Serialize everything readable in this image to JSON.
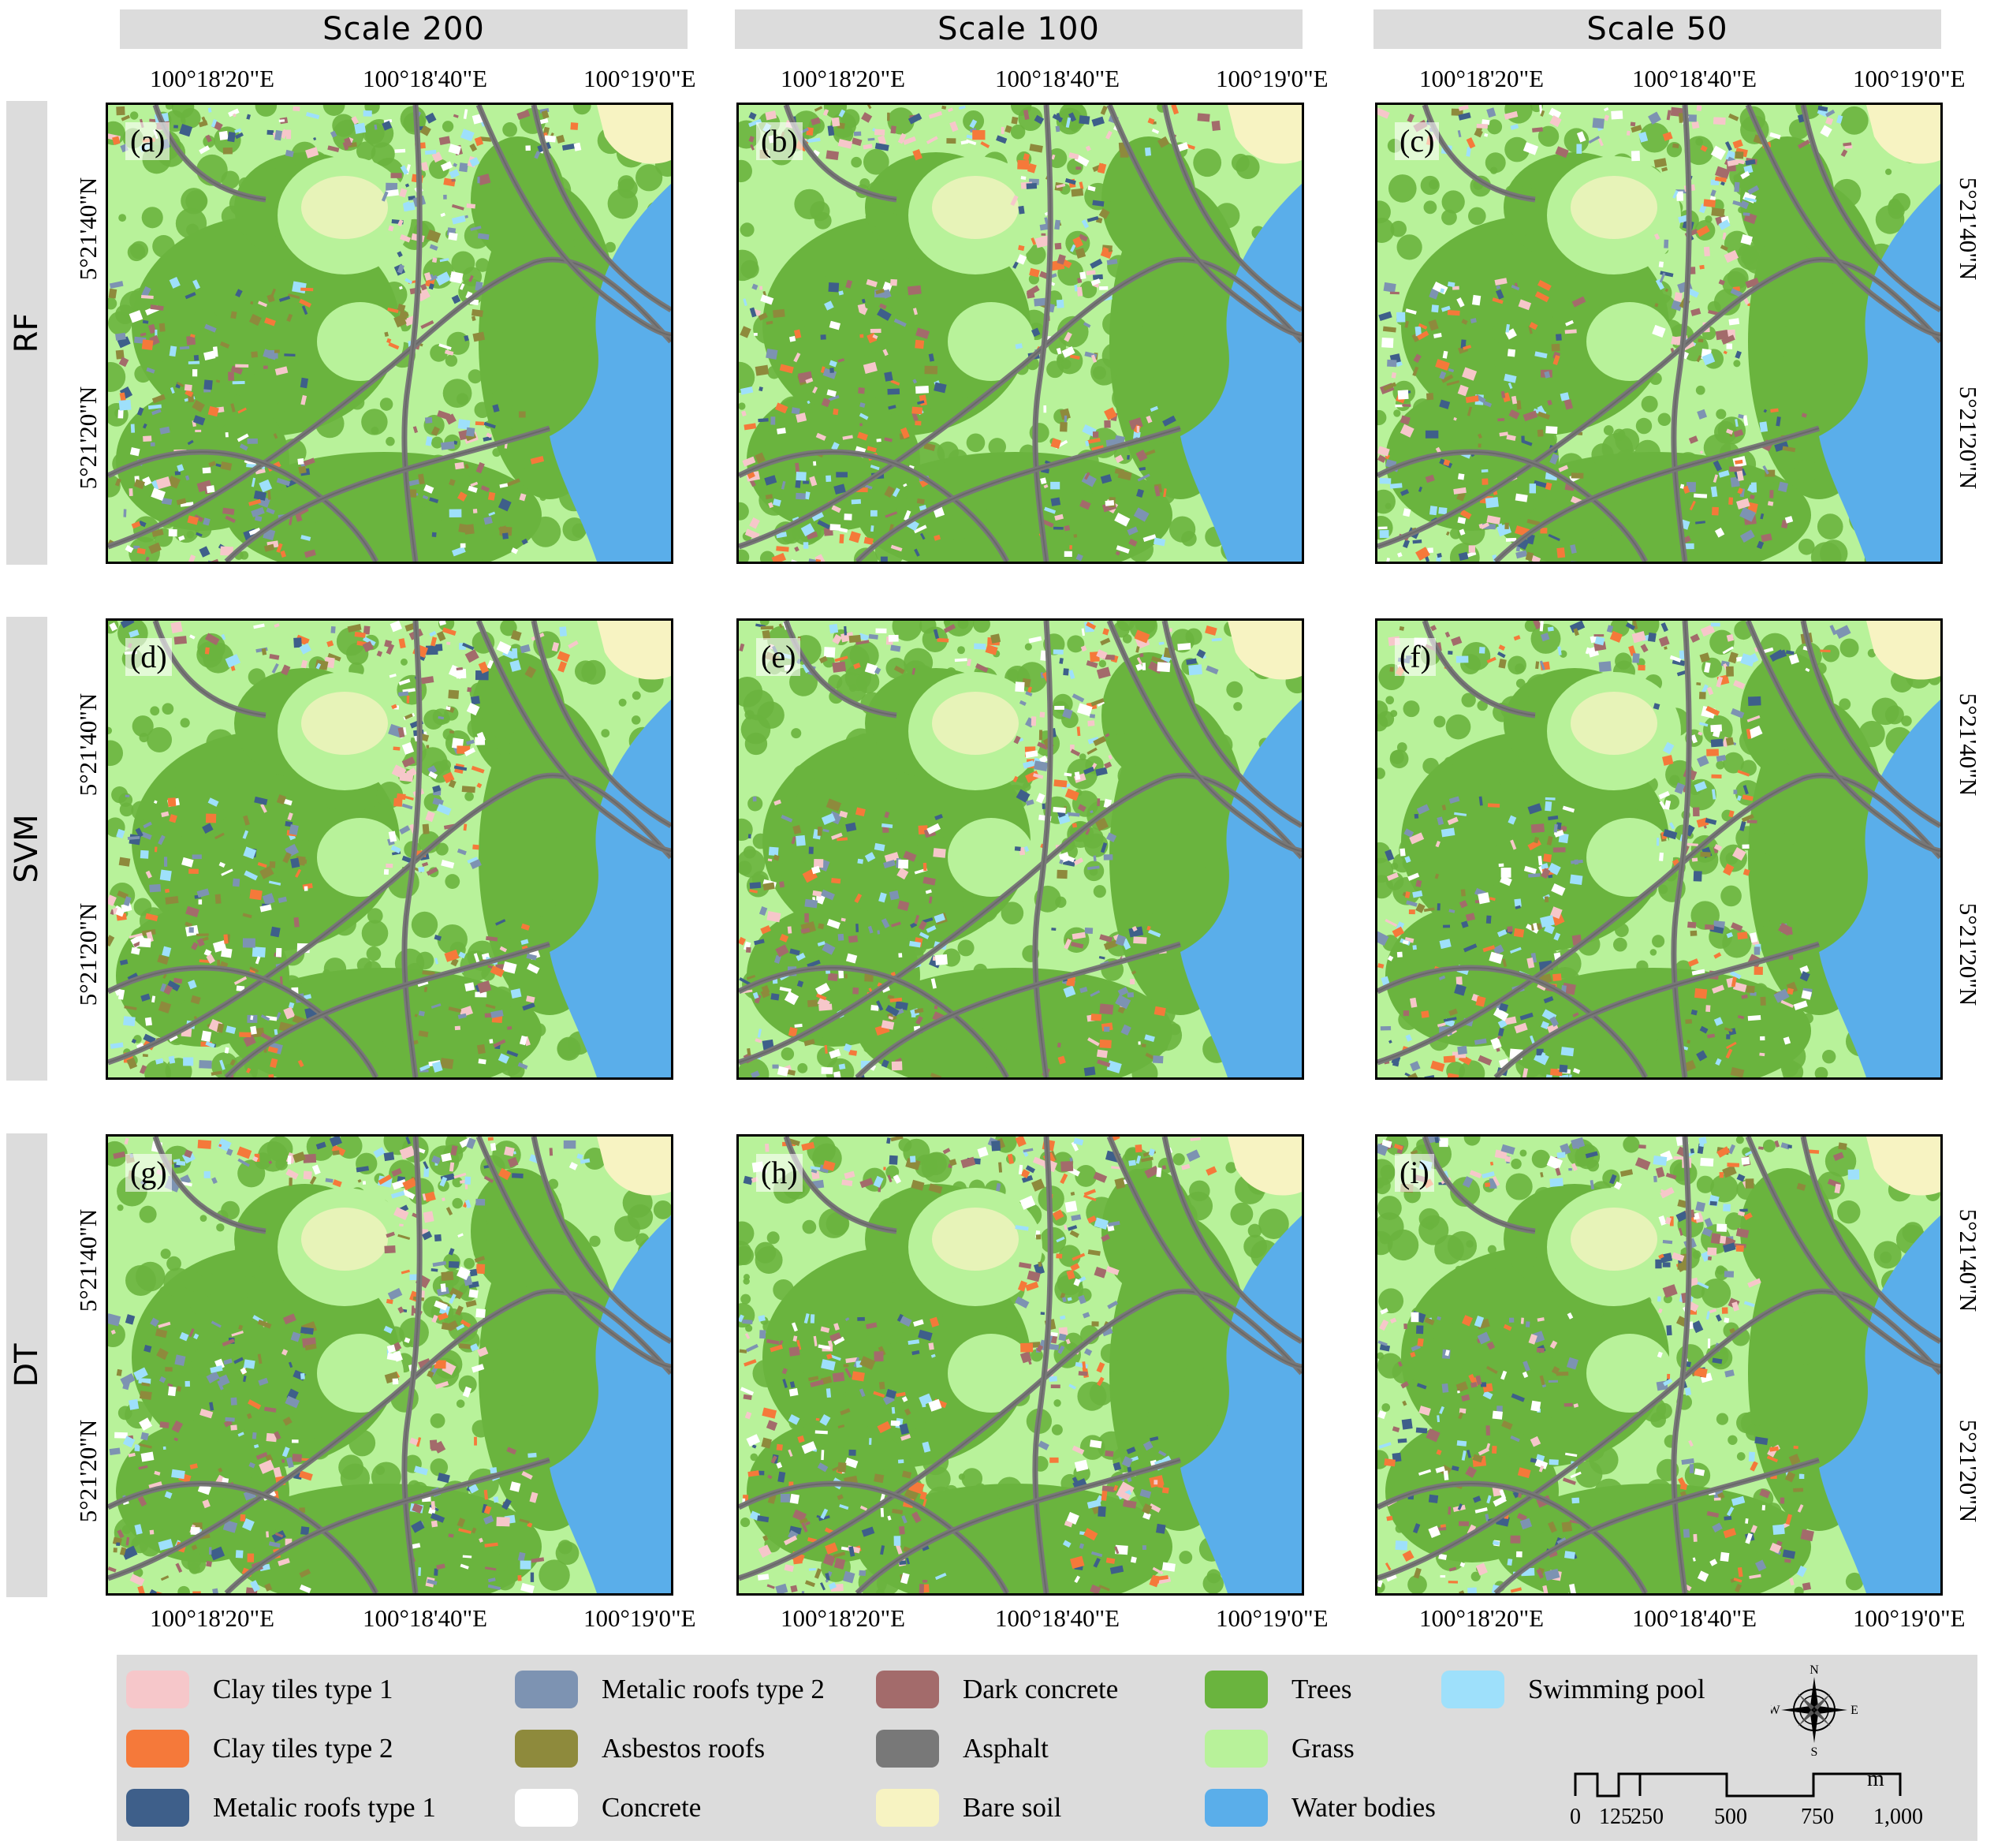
{
  "column_headers": [
    "Scale 200",
    "Scale 100",
    "Scale 50"
  ],
  "row_headers": [
    "RF",
    "SVM",
    "DT"
  ],
  "panels": [
    [
      "(a)",
      "(b)",
      "(c)"
    ],
    [
      "(d)",
      "(e)",
      "(f)"
    ],
    [
      "(g)",
      "(h)",
      "(i)"
    ]
  ],
  "longitude_labels": [
    "100°18'20\"E",
    "100°18'40\"E",
    "100°19'0\"E"
  ],
  "latitude_labels": [
    "5°21'40\"N",
    "5°21'20\"N"
  ],
  "legend": [
    {
      "label": "Clay tiles type 1",
      "color": "#f6c7ca"
    },
    {
      "label": "Clay tiles type 2",
      "color": "#f5793a"
    },
    {
      "label": "Metalic roofs type 1",
      "color": "#3e5f8a"
    },
    {
      "label": "Metalic roofs type 2",
      "color": "#7d93b2"
    },
    {
      "label": "Asbestos roofs",
      "color": "#8e8a3c"
    },
    {
      "label": "Concrete",
      "color": "#ffffff"
    },
    {
      "label": "Dark concrete",
      "color": "#a36b6b"
    },
    {
      "label": "Asphalt",
      "color": "#787878"
    },
    {
      "label": "Bare soil",
      "color": "#f7f3c2"
    },
    {
      "label": "Trees",
      "color": "#6ab43e"
    },
    {
      "label": "Grass",
      "color": "#b8f29a"
    },
    {
      "label": "Water bodies",
      "color": "#5aaeea"
    },
    {
      "label": "Swimming pool",
      "color": "#9ee0fb"
    }
  ],
  "compass": {
    "n": "N",
    "s": "S",
    "e": "E",
    "w": "W",
    "icon": "north-arrow-compass-icon"
  },
  "scale_bar": {
    "ticks": [
      "0",
      "125",
      "250",
      "500",
      "750",
      "1,000"
    ],
    "unit": "m"
  }
}
